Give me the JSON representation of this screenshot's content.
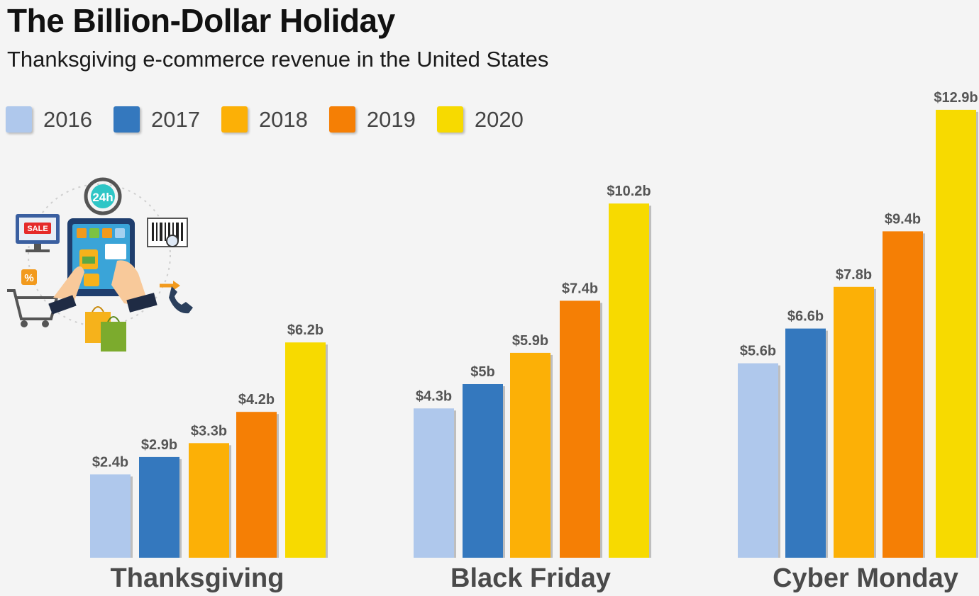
{
  "chart_data": {
    "type": "bar",
    "title": "The Billion-Dollar Holiday",
    "subtitle": "Thanksgiving e-commerce revenue in the United States",
    "categories": [
      "Thanksgiving",
      "Black Friday",
      "Cyber Monday"
    ],
    "series": [
      {
        "name": "2016",
        "color": "#afc8ec",
        "values": [
          2.4,
          4.3,
          5.6
        ],
        "labels": [
          "$2.4b",
          "$4.3b",
          "$5.6b"
        ]
      },
      {
        "name": "2017",
        "color": "#3478be",
        "values": [
          2.9,
          5.0,
          6.6
        ],
        "labels": [
          "$2.9b",
          "$5b",
          "$6.6b"
        ]
      },
      {
        "name": "2018",
        "color": "#fcb006",
        "values": [
          3.3,
          5.9,
          7.8
        ],
        "labels": [
          "$3.3b",
          "$5.9b",
          "$7.8b"
        ]
      },
      {
        "name": "2019",
        "color": "#f57f05",
        "values": [
          4.2,
          7.4,
          9.4
        ],
        "labels": [
          "$4.2b",
          "$7.4b",
          "$9.4b"
        ]
      },
      {
        "name": "2020",
        "color": "#f7da00",
        "values": [
          6.2,
          10.2,
          12.9
        ],
        "labels": [
          "$6.2b",
          "$10.2b",
          "$12.9b"
        ]
      }
    ],
    "ylim": [
      0,
      12.9
    ],
    "legend_position": "top-left",
    "grid": false
  },
  "colors": {
    "background": "#f4f4f4",
    "category_label": "#4a4a4a",
    "value_label": "#555555"
  }
}
